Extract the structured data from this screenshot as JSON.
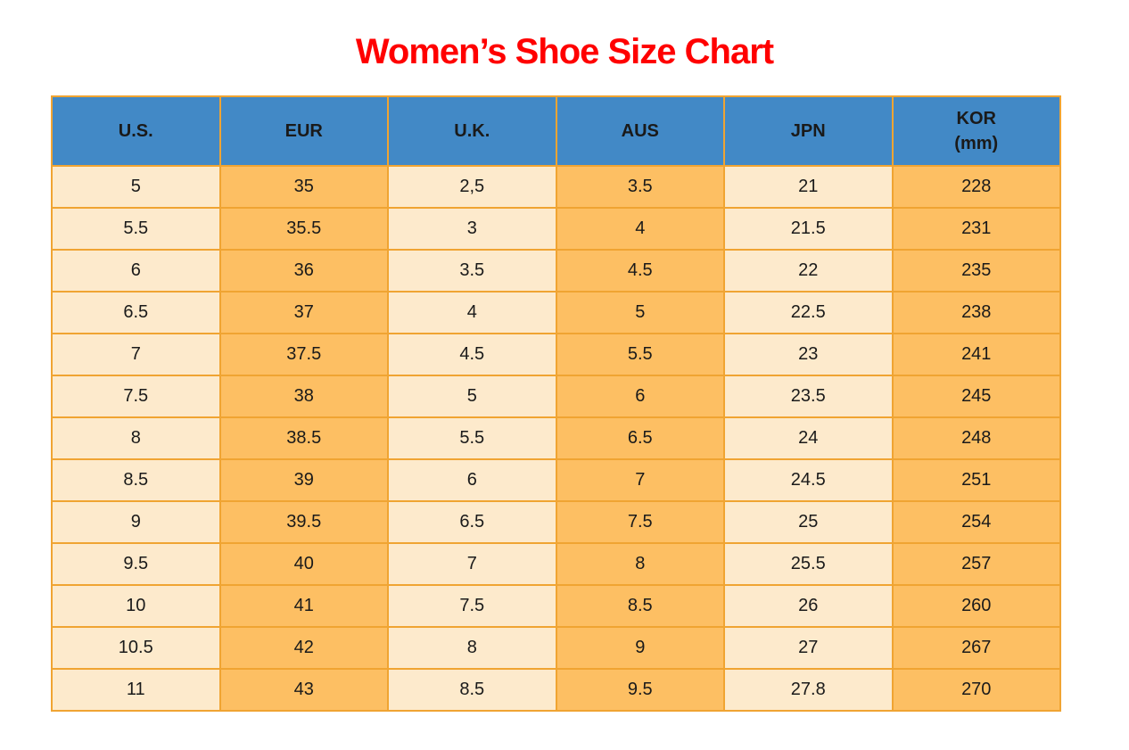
{
  "title": {
    "text": "Women’s Shoe Size Chart"
  },
  "table": {
    "header_labels": [
      "U.S.",
      "EUR",
      "U.K.",
      "AUS",
      "JPN",
      "KOR\n(mm)"
    ]
  },
  "chart_data": {
    "type": "table",
    "title": "Women’s Shoe Size Chart",
    "columns": [
      "U.S.",
      "EUR",
      "U.K.",
      "AUS",
      "JPN",
      "KOR (mm)"
    ],
    "rows": [
      [
        "5",
        "35",
        "2,5",
        "3.5",
        "21",
        "228"
      ],
      [
        "5.5",
        "35.5",
        "3",
        "4",
        "21.5",
        "231"
      ],
      [
        "6",
        "36",
        "3.5",
        "4.5",
        "22",
        "235"
      ],
      [
        "6.5",
        "37",
        "4",
        "5",
        "22.5",
        "238"
      ],
      [
        "7",
        "37.5",
        "4.5",
        "5.5",
        "23",
        "241"
      ],
      [
        "7.5",
        "38",
        "5",
        "6",
        "23.5",
        "245"
      ],
      [
        "8",
        "38.5",
        "5.5",
        "6.5",
        "24",
        "248"
      ],
      [
        "8.5",
        "39",
        "6",
        "7",
        "24.5",
        "251"
      ],
      [
        "9",
        "39.5",
        "6.5",
        "7.5",
        "25",
        "254"
      ],
      [
        "9.5",
        "40",
        "7",
        "8",
        "25.5",
        "257"
      ],
      [
        "10",
        "41",
        "7.5",
        "8.5",
        "26",
        "260"
      ],
      [
        "10.5",
        "42",
        "8",
        "9",
        "27",
        "267"
      ],
      [
        "11",
        "43",
        "8.5",
        "9.5",
        "27.8",
        "270"
      ]
    ],
    "layout": {
      "column_fill_pattern": [
        "cream",
        "orange",
        "cream",
        "orange",
        "cream",
        "orange"
      ],
      "header_fill": "blue"
    }
  },
  "colors": {
    "title-red": "#FF0000",
    "header-blue": "#4289C6",
    "cell-cream": "#FDEACC",
    "cell-orange": "#FDBF63",
    "table-border": "#F0A432",
    "text-black": "#1A1A1A"
  }
}
